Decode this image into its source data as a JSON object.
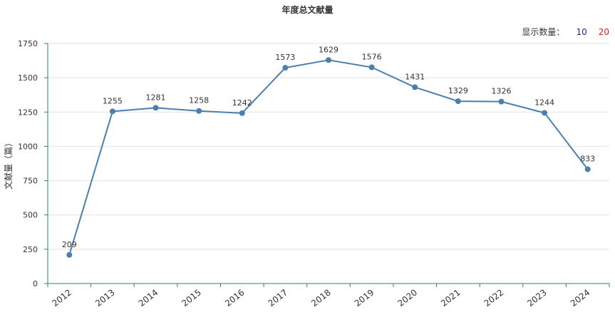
{
  "title": "年度总文献量",
  "count_selector": {
    "label": "显示数量：",
    "options": [
      "10",
      "20"
    ]
  },
  "colors": {
    "line": "#4a7fae",
    "axis": "#1a8a7a",
    "grid": "#e2e2e2",
    "count_10": "#1a2aa0",
    "count_20": "#d42020"
  },
  "chart_data": {
    "type": "line",
    "title": "年度总文献量",
    "xlabel": "",
    "ylabel": "文献量（篇）",
    "categories": [
      "2012",
      "2013",
      "2014",
      "2015",
      "2016",
      "2017",
      "2018",
      "2019",
      "2020",
      "2021",
      "2022",
      "2023",
      "2024"
    ],
    "values": [
      209,
      1255,
      1281,
      1258,
      1242,
      1573,
      1629,
      1576,
      1431,
      1329,
      1326,
      1244,
      833
    ],
    "ylim": [
      0,
      1750
    ],
    "yticks": [
      0,
      250,
      500,
      750,
      1000,
      1250,
      1500,
      1750
    ],
    "grid": true,
    "data_labels": true
  }
}
